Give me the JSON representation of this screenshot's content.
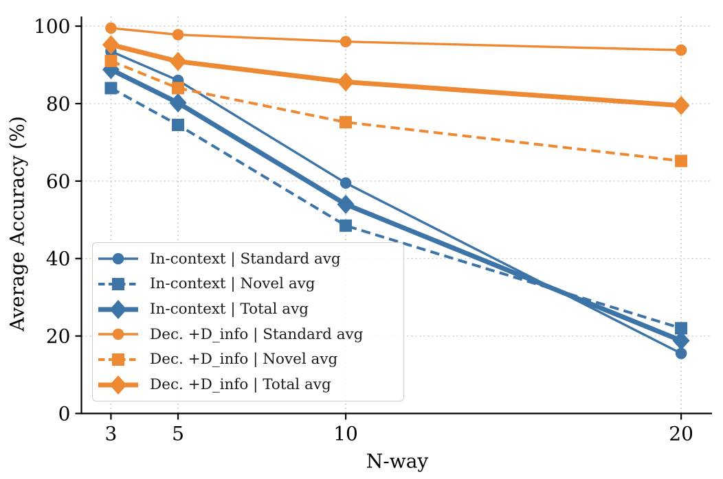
{
  "figure": {
    "background": "#ffffff"
  },
  "chart_data": {
    "type": "line",
    "title": "",
    "xlabel": "N-way",
    "ylabel": "Average Accuracy (%)",
    "x": [
      3,
      5,
      10,
      20
    ],
    "x_ticks": [
      "3",
      "5",
      "10",
      "20"
    ],
    "y_ticks": [
      "0",
      "20",
      "40",
      "60",
      "80",
      "100"
    ],
    "y_tick_values": [
      0,
      20,
      40,
      60,
      80,
      100
    ],
    "xlim": [
      2.12,
      20.92
    ],
    "ylim": [
      0,
      102.5
    ],
    "grid": "dotted",
    "grid_color": "#cbcbcb",
    "axis_color": "#000000",
    "legend_position": "lower left",
    "colors": {
      "in_context": "#3C74A8",
      "dec_d_info": "#EE8933"
    },
    "series": [
      {
        "name": "In-context | Standard avg",
        "group": "In-context",
        "metric": "Standard avg",
        "color": "#3C74A8",
        "marker": "circle",
        "line": "solid",
        "values": [
          93.5,
          86.0,
          59.5,
          15.5
        ]
      },
      {
        "name": "In-context | Novel avg",
        "group": "In-context",
        "metric": "Novel avg",
        "color": "#3C74A8",
        "marker": "square",
        "line": "dashed",
        "values": [
          84.0,
          74.5,
          48.5,
          22.0
        ]
      },
      {
        "name": "In-context | Total avg",
        "group": "In-context",
        "metric": "Total avg",
        "color": "#3C74A8",
        "marker": "diamond",
        "line": "solid-thick",
        "values": [
          88.8,
          80.2,
          54.0,
          18.8
        ]
      },
      {
        "name": "Dec. +D_info | Standard avg",
        "group": "Dec. +D_info",
        "metric": "Standard avg",
        "color": "#EE8933",
        "marker": "circle",
        "line": "solid",
        "values": [
          99.5,
          97.8,
          96.0,
          93.8
        ]
      },
      {
        "name": "Dec. +D_info | Novel avg",
        "group": "Dec. +D_info",
        "metric": "Novel avg",
        "color": "#EE8933",
        "marker": "square",
        "line": "dashed",
        "values": [
          91.0,
          84.0,
          75.2,
          65.2
        ]
      },
      {
        "name": "Dec. +D_info | Total avg",
        "group": "Dec. +D_info",
        "metric": "Total avg",
        "color": "#EE8933",
        "marker": "diamond",
        "line": "solid-thick",
        "values": [
          95.2,
          90.9,
          85.6,
          79.5
        ]
      }
    ]
  }
}
